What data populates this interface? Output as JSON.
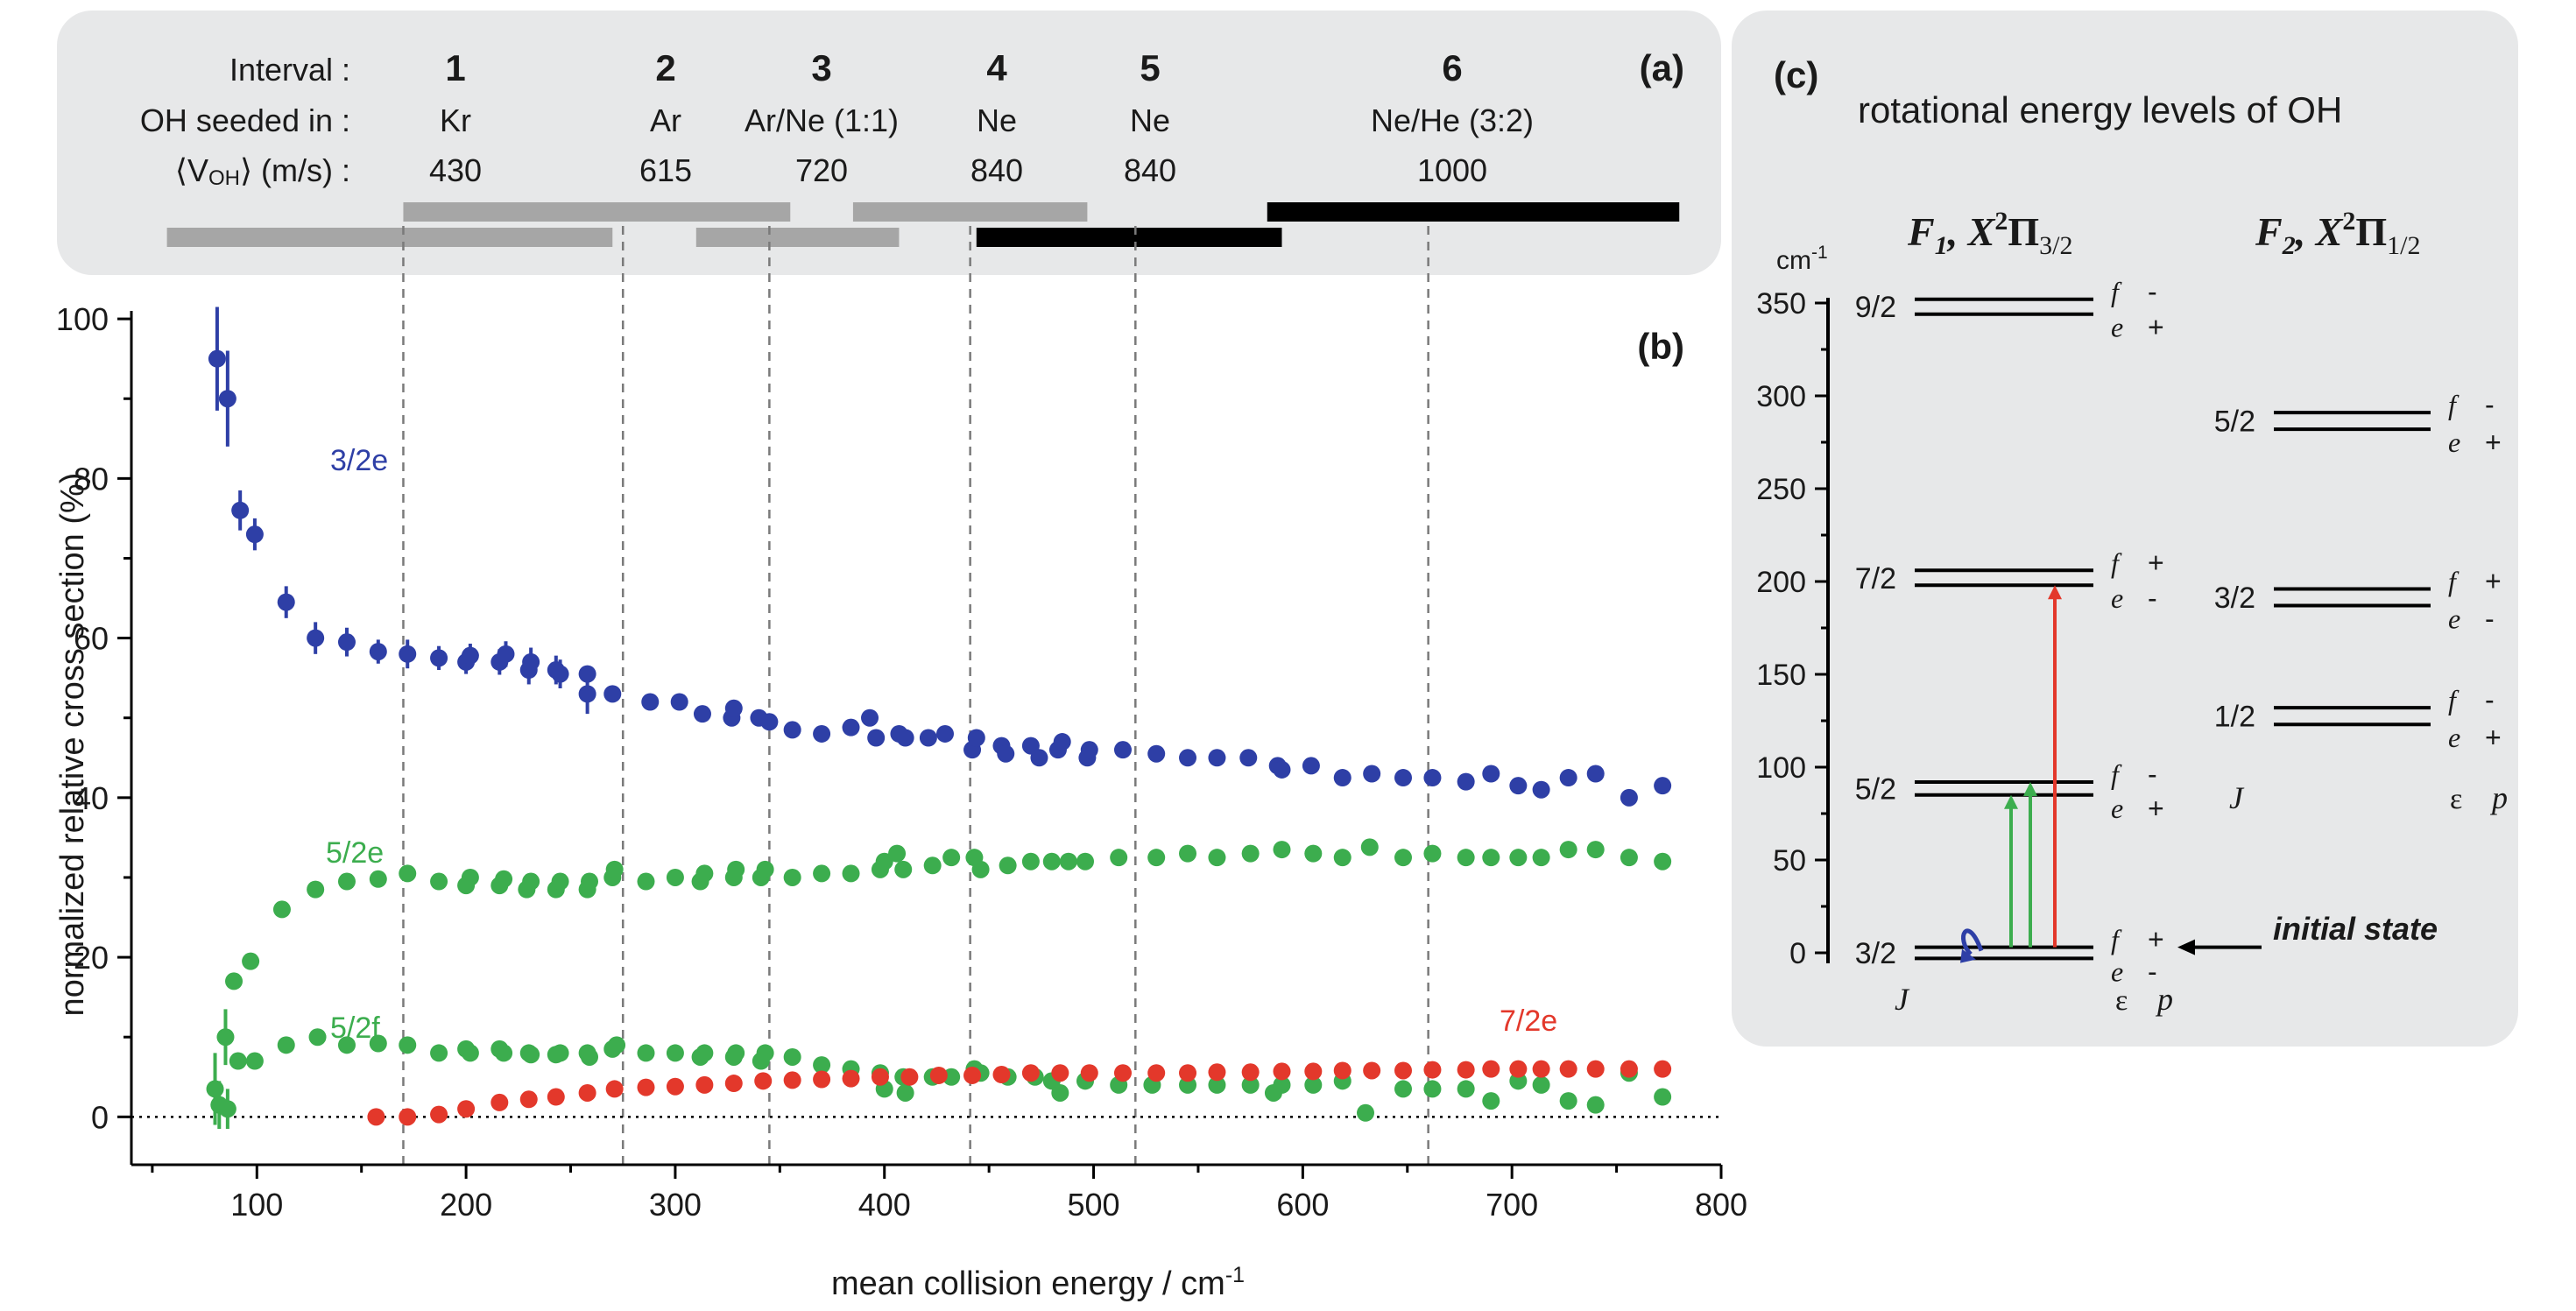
{
  "colors": {
    "panel_bg": "#e7e8e9",
    "blue": "#2e3fa6",
    "green": "#3cad4e",
    "red": "#e3382b",
    "bar_gray": "#a6a6a6",
    "bar_black": "#000000"
  },
  "panel_a": {
    "label": "(a)",
    "row_labels": [
      "Interval :",
      "OH seeded in :",
      "⟨V",
      "OH",
      "⟩  (m/s) :"
    ],
    "intervals": [
      {
        "num": "1",
        "gas": "Kr",
        "v": "430",
        "range": [
          57,
          270
        ],
        "shade": "gray",
        "tier": "low"
      },
      {
        "num": "2",
        "gas": "Ar",
        "v": "615",
        "range": [
          170,
          355
        ],
        "shade": "gray",
        "tier": "high"
      },
      {
        "num": "3",
        "gas": "Ar/Ne (1:1)",
        "v": "720",
        "range": [
          310,
          407
        ],
        "shade": "gray",
        "tier": "low"
      },
      {
        "num": "4",
        "gas": "Ne",
        "v": "840",
        "range": [
          385,
          497
        ],
        "shade": "gray",
        "tier": "high"
      },
      {
        "num": "5",
        "gas": "Ne",
        "v": "840",
        "range": [
          444,
          590
        ],
        "shade": "black",
        "tier": "low"
      },
      {
        "num": "6",
        "gas": "Ne/He (3:2)",
        "v": "1000",
        "range": [
          583,
          780
        ],
        "shade": "black",
        "tier": "high"
      }
    ]
  },
  "chart_data": {
    "type": "scatter",
    "panel_label": "(b)",
    "xlabel": "mean collision energy / cm",
    "xlabel_sup": "-1",
    "ylabel": "normalized relative cross section (%)",
    "xlim": [
      40,
      800
    ],
    "ylim": [
      -6,
      101
    ],
    "xticks": [
      "100",
      "200",
      "300",
      "400",
      "500",
      "600",
      "700",
      "800"
    ],
    "yticks": [
      "0",
      "20",
      "40",
      "60",
      "80",
      "100"
    ],
    "vlines_x": [
      170,
      275,
      345,
      441,
      520,
      660
    ],
    "series": [
      {
        "name": "3/2e",
        "color": "#2e3fa6",
        "points": [
          [
            81,
            95
          ],
          [
            86,
            90
          ],
          [
            92,
            76
          ],
          [
            99,
            73
          ],
          [
            114,
            64.5
          ],
          [
            128,
            60
          ],
          [
            143,
            59.5
          ],
          [
            158,
            58.3
          ],
          [
            172,
            58
          ],
          [
            187,
            57.5
          ],
          [
            200,
            57
          ],
          [
            202,
            57.8
          ],
          [
            216,
            57
          ],
          [
            219,
            58
          ],
          [
            230,
            56
          ],
          [
            231,
            57
          ],
          [
            243,
            56
          ],
          [
            245,
            55.5
          ],
          [
            258,
            53
          ],
          [
            258,
            55.5
          ],
          [
            270,
            53
          ],
          [
            288,
            52
          ],
          [
            302,
            52
          ],
          [
            313,
            50.5
          ],
          [
            327,
            50
          ],
          [
            328,
            51.2
          ],
          [
            340,
            50
          ],
          [
            345,
            49.5
          ],
          [
            356,
            48.5
          ],
          [
            370,
            48
          ],
          [
            384,
            48.8
          ],
          [
            393,
            50
          ],
          [
            396,
            47.5
          ],
          [
            407,
            48
          ],
          [
            410,
            47.5
          ],
          [
            421,
            47.5
          ],
          [
            429,
            48
          ],
          [
            442,
            46
          ],
          [
            444,
            47.5
          ],
          [
            456,
            46.5
          ],
          [
            458,
            45.5
          ],
          [
            470,
            46.5
          ],
          [
            474,
            45
          ],
          [
            483,
            46
          ],
          [
            485,
            47
          ],
          [
            497,
            45
          ],
          [
            498,
            46
          ],
          [
            514,
            46
          ],
          [
            530,
            45.5
          ],
          [
            545,
            45
          ],
          [
            559,
            45
          ],
          [
            574,
            45
          ],
          [
            588,
            44
          ],
          [
            590,
            43.5
          ],
          [
            604,
            44
          ],
          [
            619,
            42.5
          ],
          [
            633,
            43
          ],
          [
            648,
            42.5
          ],
          [
            662,
            42.5
          ],
          [
            678,
            42
          ],
          [
            690,
            43
          ],
          [
            703,
            41.5
          ],
          [
            714,
            41
          ],
          [
            727,
            42.5
          ],
          [
            740,
            43
          ],
          [
            756,
            40
          ],
          [
            772,
            41.5
          ]
        ],
        "errors": [
          [
            81,
            6.5
          ],
          [
            86,
            6
          ],
          [
            92,
            2.5
          ],
          [
            99,
            2
          ],
          [
            114,
            2
          ],
          [
            128,
            2
          ],
          [
            143,
            1.8
          ],
          [
            158,
            1.5
          ],
          [
            172,
            1.8
          ],
          [
            187,
            1.5
          ],
          [
            200,
            1.5
          ],
          [
            202,
            1.5
          ],
          [
            216,
            1.6
          ],
          [
            219,
            1.6
          ],
          [
            230,
            1.8
          ],
          [
            231,
            1.8
          ],
          [
            243,
            1.8
          ],
          [
            245,
            1.8
          ],
          [
            258,
            2.5
          ]
        ]
      },
      {
        "name": "5/2e",
        "color": "#3cad4e",
        "points": [
          [
            89,
            17
          ],
          [
            97,
            19.5
          ],
          [
            112,
            26
          ],
          [
            128,
            28.5
          ],
          [
            143,
            29.5
          ],
          [
            158,
            29.8
          ],
          [
            172,
            30.5
          ],
          [
            187,
            29.5
          ],
          [
            200,
            29
          ],
          [
            202,
            30
          ],
          [
            216,
            29
          ],
          [
            218,
            29.8
          ],
          [
            229,
            28.5
          ],
          [
            231,
            29.5
          ],
          [
            243,
            28.5
          ],
          [
            245,
            29.5
          ],
          [
            258,
            28.5
          ],
          [
            259,
            29.5
          ],
          [
            270,
            30
          ],
          [
            271,
            31
          ],
          [
            286,
            29.5
          ],
          [
            300,
            30
          ],
          [
            312,
            29.5
          ],
          [
            314,
            30.5
          ],
          [
            328,
            30
          ],
          [
            329,
            31
          ],
          [
            341,
            30
          ],
          [
            343,
            31
          ],
          [
            356,
            30
          ],
          [
            370,
            30.5
          ],
          [
            384,
            30.5
          ],
          [
            398,
            31
          ],
          [
            400,
            32
          ],
          [
            406,
            33
          ],
          [
            409,
            31
          ],
          [
            423,
            31.5
          ],
          [
            432,
            32.5
          ],
          [
            443,
            32.5
          ],
          [
            446,
            31
          ],
          [
            459,
            31.5
          ],
          [
            470,
            32
          ],
          [
            480,
            32
          ],
          [
            488,
            32
          ],
          [
            496,
            32
          ],
          [
            512,
            32.5
          ],
          [
            530,
            32.5
          ],
          [
            545,
            33
          ],
          [
            559,
            32.5
          ],
          [
            575,
            33
          ],
          [
            590,
            33.5
          ],
          [
            605,
            33
          ],
          [
            619,
            32.5
          ],
          [
            632,
            33.8
          ],
          [
            648,
            32.5
          ],
          [
            662,
            33
          ],
          [
            678,
            32.5
          ],
          [
            690,
            32.5
          ],
          [
            703,
            32.5
          ],
          [
            714,
            32.5
          ],
          [
            727,
            33.5
          ],
          [
            740,
            33.5
          ],
          [
            756,
            32.5
          ],
          [
            772,
            32
          ]
        ]
      },
      {
        "name": "5/2f",
        "color": "#3cad4e",
        "points": [
          [
            80,
            3.5
          ],
          [
            82,
            1.5
          ],
          [
            85,
            10
          ],
          [
            86,
            1
          ],
          [
            91,
            7
          ],
          [
            99,
            7
          ],
          [
            114,
            9
          ],
          [
            129,
            10
          ],
          [
            143,
            9
          ],
          [
            158,
            9.2
          ],
          [
            172,
            9
          ],
          [
            187,
            8
          ],
          [
            200,
            8.5
          ],
          [
            202,
            8
          ],
          [
            216,
            8.5
          ],
          [
            218,
            8
          ],
          [
            230,
            8
          ],
          [
            231,
            7.8
          ],
          [
            243,
            7.8
          ],
          [
            245,
            8
          ],
          [
            258,
            8
          ],
          [
            259,
            7.5
          ],
          [
            270,
            8.5
          ],
          [
            272,
            9
          ],
          [
            286,
            8
          ],
          [
            300,
            8
          ],
          [
            312,
            7.5
          ],
          [
            314,
            8
          ],
          [
            328,
            7.5
          ],
          [
            329,
            8
          ],
          [
            341,
            7
          ],
          [
            343,
            8
          ],
          [
            356,
            7.5
          ],
          [
            370,
            6.5
          ],
          [
            384,
            6
          ],
          [
            398,
            5.5
          ],
          [
            400,
            3.5
          ],
          [
            409,
            5
          ],
          [
            410,
            3
          ],
          [
            423,
            5
          ],
          [
            432,
            5
          ],
          [
            443,
            6
          ],
          [
            446,
            5.5
          ],
          [
            459,
            5
          ],
          [
            472,
            5
          ],
          [
            480,
            4.5
          ],
          [
            484,
            3
          ],
          [
            496,
            4.5
          ],
          [
            512,
            4
          ],
          [
            528,
            4
          ],
          [
            545,
            4
          ],
          [
            559,
            4
          ],
          [
            575,
            4
          ],
          [
            586,
            3
          ],
          [
            590,
            4
          ],
          [
            605,
            4
          ],
          [
            619,
            4.5
          ],
          [
            630,
            0.5
          ],
          [
            648,
            3.5
          ],
          [
            662,
            3.5
          ],
          [
            678,
            3.5
          ],
          [
            690,
            2
          ],
          [
            703,
            4.5
          ],
          [
            714,
            4
          ],
          [
            727,
            2
          ],
          [
            740,
            1.5
          ],
          [
            756,
            5.5
          ],
          [
            772,
            2.5
          ]
        ],
        "errors": [
          [
            80,
            4.5
          ],
          [
            82,
            3
          ],
          [
            85,
            3.5
          ],
          [
            86,
            2.5
          ]
        ]
      },
      {
        "name": "7/2e",
        "color": "#e3382b",
        "points": [
          [
            157,
            0
          ],
          [
            172,
            0
          ],
          [
            187,
            0.3
          ],
          [
            200,
            1
          ],
          [
            216,
            1.8
          ],
          [
            230,
            2.2
          ],
          [
            243,
            2.5
          ],
          [
            258,
            3
          ],
          [
            271,
            3.5
          ],
          [
            286,
            3.7
          ],
          [
            300,
            3.8
          ],
          [
            314,
            4
          ],
          [
            328,
            4.2
          ],
          [
            342,
            4.5
          ],
          [
            356,
            4.6
          ],
          [
            370,
            4.7
          ],
          [
            384,
            4.8
          ],
          [
            398,
            5
          ],
          [
            412,
            5
          ],
          [
            426,
            5.2
          ],
          [
            442,
            5.2
          ],
          [
            456,
            5.3
          ],
          [
            470,
            5.5
          ],
          [
            484,
            5.5
          ],
          [
            498,
            5.5
          ],
          [
            514,
            5.5
          ],
          [
            530,
            5.5
          ],
          [
            545,
            5.5
          ],
          [
            559,
            5.6
          ],
          [
            575,
            5.6
          ],
          [
            590,
            5.7
          ],
          [
            605,
            5.7
          ],
          [
            619,
            5.8
          ],
          [
            633,
            5.8
          ],
          [
            648,
            5.8
          ],
          [
            662,
            5.9
          ],
          [
            678,
            5.9
          ],
          [
            690,
            6
          ],
          [
            703,
            6
          ],
          [
            714,
            6
          ],
          [
            727,
            6
          ],
          [
            740,
            6
          ],
          [
            756,
            6
          ],
          [
            772,
            6
          ]
        ]
      }
    ]
  },
  "panel_c": {
    "label": "(c)",
    "title": "rotational energy levels of OH",
    "unit": "cm",
    "unit_sup": "-1",
    "yticks": [
      "0",
      "50",
      "100",
      "150",
      "200",
      "250",
      "300",
      "350"
    ],
    "ylim": [
      -12,
      395
    ],
    "F1_header": {
      "name": "F",
      "sub": "1",
      "comma": ", X",
      "sup": "2",
      "pi": "Π",
      "sub2": "3/2"
    },
    "F2_header": {
      "name": "F",
      "sub": "2",
      "comma": ", X",
      "sup": "2",
      "pi": "Π",
      "sub2": "1/2"
    },
    "F1_levels": [
      {
        "J": "3/2",
        "f": 3,
        "e": -3,
        "upper": "+",
        "lower": "-",
        "upper_p": "f",
        "lower_p": "e"
      },
      {
        "J": "5/2",
        "f": 92,
        "e": 85,
        "upper": "-",
        "lower": "+",
        "upper_p": "f",
        "lower_p": "e"
      },
      {
        "J": "7/2",
        "f": 206,
        "e": 198,
        "upper": "+",
        "lower": "-",
        "upper_p": "f",
        "lower_p": "e"
      },
      {
        "J": "9/2",
        "f": 352,
        "e": 344,
        "upper": "-",
        "lower": "+",
        "upper_p": "f",
        "lower_p": "e"
      }
    ],
    "F2_levels": [
      {
        "J": "1/2",
        "f": 132,
        "e": 123,
        "upper": "-",
        "lower": "+",
        "upper_p": "f",
        "lower_p": "e"
      },
      {
        "J": "3/2",
        "f": 196,
        "e": 187,
        "upper": "+",
        "lower": "-",
        "upper_p": "f",
        "lower_p": "e"
      },
      {
        "J": "5/2",
        "f": 291,
        "e": 282,
        "upper": "-",
        "lower": "+",
        "upper_p": "f",
        "lower_p": "e"
      }
    ],
    "col_J": "J",
    "col_eps": "ε",
    "col_p": "p",
    "initial_state": "initial state"
  }
}
